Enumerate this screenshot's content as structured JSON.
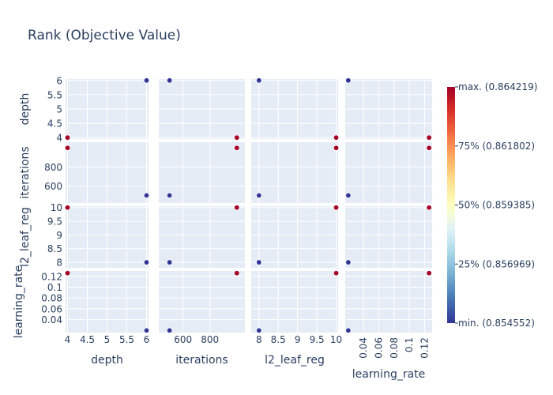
{
  "chart_data": {
    "type": "scatter",
    "title": "Rank (Objective Value)",
    "params": [
      "depth",
      "iterations",
      "l2_leaf_reg",
      "learning_rate"
    ],
    "axes": {
      "depth": {
        "range": [
          3.95,
          6.05
        ],
        "ticks": [
          4,
          4.5,
          5,
          5.5,
          6
        ],
        "labels": [
          "4",
          "4.5",
          "5",
          "5.5",
          "6"
        ]
      },
      "iterations": {
        "range": [
          420,
          1060
        ],
        "ticks": [
          600,
          800
        ],
        "labels": [
          "600",
          "800"
        ]
      },
      "l2_leaf_reg": {
        "range": [
          7.8,
          10.05
        ],
        "ticks": [
          8,
          8.5,
          9,
          9.5,
          10
        ],
        "labels": [
          "8",
          "8.5",
          "9",
          "9.5",
          "10"
        ]
      },
      "learning_rate": {
        "range": [
          0.016,
          0.13
        ],
        "ticks": [
          0.04,
          0.06,
          0.08,
          0.1,
          0.12
        ],
        "labels": [
          "0.04",
          "0.06",
          "0.08",
          "0.1",
          "0.12"
        ]
      }
    },
    "points": [
      {
        "depth": 6,
        "iterations": 500,
        "l2_leaf_reg": 8,
        "learning_rate": 0.02,
        "value": 0.854552
      },
      {
        "depth": 4,
        "iterations": 1000,
        "l2_leaf_reg": 10,
        "learning_rate": 0.126,
        "value": 0.864219
      }
    ],
    "colorbar": {
      "labels": [
        "max. (0.864219)",
        "75% (0.861802)",
        "50% (0.859385)",
        "25% (0.856969)",
        "min. (0.854552)"
      ],
      "colorscale": [
        "#313695",
        "#4575b4",
        "#74add1",
        "#abd9e9",
        "#e0f3f8",
        "#ffffbf",
        "#fee090",
        "#fdae61",
        "#f46d43",
        "#d73027",
        "#a50026"
      ]
    },
    "grid": true
  }
}
